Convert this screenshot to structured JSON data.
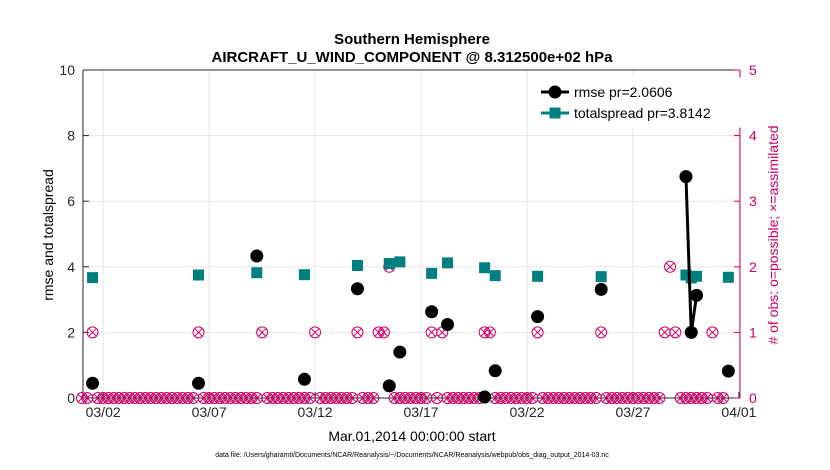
{
  "chart_data": {
    "type": "line",
    "title": "Southern Hemisphere",
    "subtitle": "AIRCRAFT_U_WIND_COMPONENT @ 8.312500e+02 hPa",
    "xlabel": "Mar.01,2014 00:00:00 start",
    "ylabel": "rmse and totalspread",
    "y2label": "# of obs: o=possible; ×=assimilated",
    "footnote": "data file: /Users/gharamti/Documents/NCAR/Reanalysis/~/Documents/NCAR/Reanalysis/webpub/obs_diag_output_2014-03.nc",
    "xlim": [
      0.3,
      31.3
    ],
    "ylim": [
      0,
      10
    ],
    "y2lim": [
      0,
      5
    ],
    "yticks": [
      "0",
      "2",
      "4",
      "6",
      "8",
      "10"
    ],
    "y2ticks": [
      "0",
      "1",
      "2",
      "3",
      "4",
      "5"
    ],
    "xticks": [
      {
        "value": 1.25,
        "label": "03/02"
      },
      {
        "value": 6.25,
        "label": "03/07"
      },
      {
        "value": 11.25,
        "label": "03/12"
      },
      {
        "value": 16.25,
        "label": "03/17"
      },
      {
        "value": 21.25,
        "label": "03/22"
      },
      {
        "value": 26.25,
        "label": "03/27"
      },
      {
        "value": 31.25,
        "label": "04/01"
      }
    ],
    "legend_position": "top-right",
    "series": [
      {
        "name": "rmse pr=2.0606",
        "color": "#000000",
        "marker": "circle",
        "points": [
          [
            0.75,
            0.45
          ],
          [
            5.75,
            0.45
          ],
          [
            8.5,
            4.33
          ],
          [
            10.75,
            0.57
          ],
          [
            13.25,
            3.33
          ],
          [
            14.75,
            0.37
          ],
          [
            15.25,
            1.4
          ],
          [
            16.75,
            2.63
          ],
          [
            17.5,
            2.24
          ],
          [
            19.25,
            0.03
          ],
          [
            19.75,
            0.83
          ],
          [
            21.75,
            2.48
          ],
          [
            24.75,
            3.31
          ],
          [
            28.75,
            6.75
          ],
          [
            29.0,
            2.0
          ],
          [
            29.25,
            3.13
          ],
          [
            30.75,
            0.82
          ]
        ],
        "connected_segments": [
          [
            13,
            14
          ],
          [
            14,
            15
          ]
        ]
      },
      {
        "name": "totalspread pr=3.8142",
        "color": "#007f7f",
        "marker": "square",
        "points": [
          [
            0.75,
            3.67
          ],
          [
            5.75,
            3.75
          ],
          [
            8.5,
            3.82
          ],
          [
            10.75,
            3.76
          ],
          [
            13.25,
            4.04
          ],
          [
            14.75,
            4.1
          ],
          [
            15.25,
            4.15
          ],
          [
            16.75,
            3.8
          ],
          [
            17.5,
            4.12
          ],
          [
            19.25,
            3.97
          ],
          [
            19.75,
            3.73
          ],
          [
            21.75,
            3.71
          ],
          [
            24.75,
            3.7
          ],
          [
            28.75,
            3.75
          ],
          [
            29.0,
            3.66
          ],
          [
            29.25,
            3.71
          ],
          [
            30.75,
            3.68
          ]
        ],
        "connected_segments": [
          [
            13,
            14
          ],
          [
            14,
            15
          ]
        ]
      },
      {
        "name": "possible / assimilated",
        "color": "#cc0066",
        "axis": "right",
        "marker": "circle-x",
        "x_start": 0.25,
        "x_step": 0.25,
        "values": [
          0,
          0,
          1,
          0,
          0,
          0,
          0,
          0,
          0,
          0,
          0,
          0,
          0,
          0,
          0,
          0,
          0,
          0,
          0,
          0,
          0,
          0,
          1,
          0,
          0,
          0,
          0,
          0,
          0,
          0,
          0,
          0,
          0,
          0,
          1,
          0,
          0,
          0,
          0,
          0,
          0,
          0,
          0,
          0,
          1,
          0,
          0,
          0,
          0,
          0,
          0,
          0,
          1,
          0,
          0,
          0,
          1,
          1,
          2,
          0,
          0,
          0,
          0,
          0,
          0,
          0,
          1,
          0,
          1,
          0,
          0,
          0,
          0,
          0,
          0,
          0,
          1,
          1,
          0,
          0,
          0,
          0,
          0,
          0,
          0,
          0,
          1,
          0,
          0,
          0,
          0,
          0,
          0,
          0,
          0,
          0,
          0,
          0,
          1,
          0,
          0,
          0,
          0,
          0,
          0,
          0,
          0,
          0,
          0,
          0,
          1,
          2,
          1,
          0,
          0,
          0,
          0,
          0,
          0,
          1,
          0,
          0
        ]
      }
    ]
  }
}
